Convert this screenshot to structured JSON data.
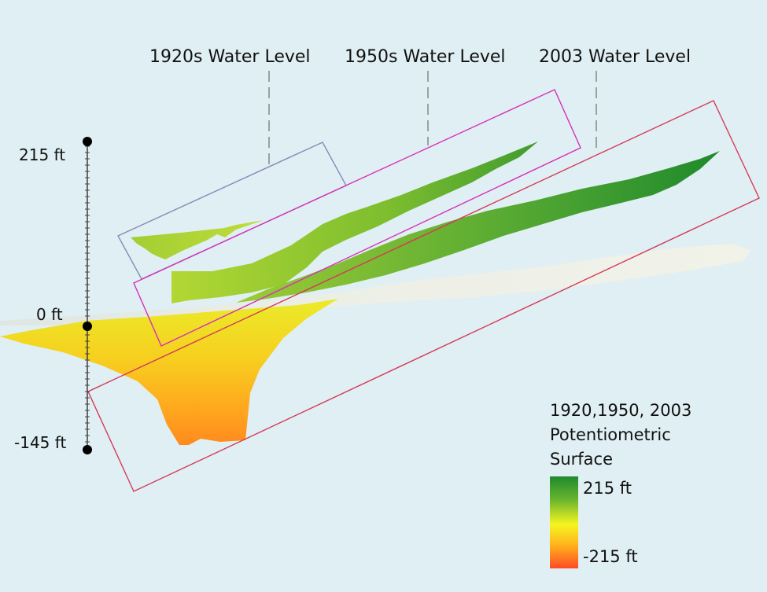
{
  "labels": {
    "wl_1920": "1920s Water Level",
    "wl_1950": "1950s Water Level",
    "wl_2003": "2003 Water Level"
  },
  "axis": {
    "top": "215 ft",
    "zero": "0 ft",
    "bottom": "-145 ft"
  },
  "legend": {
    "title_line1": "1920,1950, 2003",
    "title_line2": "Potentiometric",
    "title_line3": "Surface",
    "max": "215 ft",
    "min": "-215 ft"
  },
  "colors": {
    "background": "#e0eff3",
    "box_1920": "#8a86b8",
    "box_1950": "#d531b8",
    "box_2003": "#d23a5a",
    "scale_high": "#1f8a2c",
    "scale_mid": "#f5f51f",
    "scale_low": "#ff4a25"
  }
}
